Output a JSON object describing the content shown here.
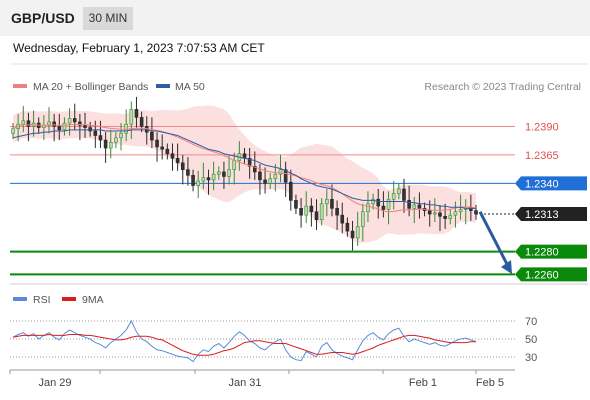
{
  "header": {
    "pair": "GBP/USD",
    "timeframe": "30 MIN"
  },
  "timestamp": "Wednesday, February 1, 2023 7:07:53 AM CET",
  "chart_data": [
    {
      "type": "candlestick",
      "legend": [
        {
          "name": "MA 20 + Bollinger Bands",
          "color": "#f08080"
        },
        {
          "name": "MA 50",
          "color": "#2f5d9e"
        }
      ],
      "attribution": "Research © 2023 Trading Central",
      "ylim": [
        1.2255,
        1.2415
      ],
      "levels": [
        {
          "value": 1.239,
          "label": "1.2390",
          "kind": "resistance",
          "color": "#e05050"
        },
        {
          "value": 1.2365,
          "label": "1.2365",
          "kind": "resistance",
          "color": "#e05050"
        },
        {
          "value": 1.234,
          "label": "1.2340",
          "kind": "pivot",
          "color": "#1f6fd6"
        },
        {
          "value": 1.2313,
          "label": "1.2313",
          "kind": "last",
          "color": "#222222"
        },
        {
          "value": 1.228,
          "label": "1.2280",
          "kind": "support",
          "color": "#0a8a0a"
        },
        {
          "value": 1.226,
          "label": "1.2260",
          "kind": "support",
          "color": "#0a8a0a"
        }
      ],
      "forecast": {
        "from": 1.2315,
        "to": 1.2262,
        "color": "#2a5aa0"
      },
      "x_ticks": [
        "Jan 29",
        "Jan 31",
        "Feb 1",
        "Feb 5"
      ],
      "closes": [
        1.2388,
        1.2392,
        1.2395,
        1.239,
        1.2393,
        1.2389,
        1.2391,
        1.2394,
        1.239,
        1.2387,
        1.2393,
        1.2397,
        1.2394,
        1.2391,
        1.2389,
        1.2386,
        1.2382,
        1.2378,
        1.2371,
        1.2376,
        1.238,
        1.2384,
        1.2392,
        1.2405,
        1.2398,
        1.239,
        1.2385,
        1.2378,
        1.2372,
        1.237,
        1.2366,
        1.2362,
        1.2358,
        1.2352,
        1.2347,
        1.2338,
        1.2342,
        1.2345,
        1.2343,
        1.2348,
        1.235,
        1.2346,
        1.2352,
        1.236,
        1.2366,
        1.2362,
        1.2355,
        1.235,
        1.2343,
        1.234,
        1.2344,
        1.2348,
        1.2352,
        1.2341,
        1.2325,
        1.2318,
        1.2312,
        1.232,
        1.2315,
        1.2308,
        1.2322,
        1.2326,
        1.2318,
        1.2312,
        1.2305,
        1.2298,
        1.2292,
        1.2302,
        1.2315,
        1.2322,
        1.2326,
        1.232,
        1.2317,
        1.2326,
        1.2331,
        1.2335,
        1.2325,
        1.2318,
        1.2321,
        1.2318,
        1.2316,
        1.2313,
        1.2314,
        1.2311,
        1.2309,
        1.2312,
        1.2315,
        1.2317,
        1.2319,
        1.2316,
        1.2313
      ],
      "ma50": [
        1.238,
        1.2381,
        1.2382,
        1.2383,
        1.2384,
        1.2384,
        1.2385,
        1.2385,
        1.2386,
        1.2386,
        1.2386,
        1.2387,
        1.2387,
        1.2387,
        1.2387,
        1.2387,
        1.2387,
        1.2387,
        1.2386,
        1.2386,
        1.2386,
        1.2386,
        1.2386,
        1.2387,
        1.2387,
        1.2387,
        1.2387,
        1.2386,
        1.2386,
        1.2385,
        1.2384,
        1.2383,
        1.2382,
        1.238,
        1.2378,
        1.2376,
        1.2374,
        1.2372,
        1.237,
        1.2369,
        1.2368,
        1.2366,
        1.2365,
        1.2364,
        1.2363,
        1.2362,
        1.2361,
        1.236,
        1.2358,
        1.2356,
        1.2355,
        1.2354,
        1.2353,
        1.2351,
        1.2349,
        1.2347,
        1.2344,
        1.2342,
        1.234,
        1.2338,
        1.2337,
        1.2336,
        1.2335,
        1.2333,
        1.2331,
        1.2329,
        1.2327,
        1.2326,
        1.2325,
        1.2325,
        1.2325,
        1.2324,
        1.2324,
        1.2324,
        1.2324,
        1.2324,
        1.2324,
        1.2323,
        1.2323,
        1.2322,
        1.2322,
        1.2321,
        1.2321,
        1.232,
        1.232,
        1.2319,
        1.2319,
        1.2319,
        1.2318,
        1.2318,
        1.2318
      ]
    },
    {
      "type": "line",
      "legend": [
        {
          "name": "RSI",
          "color": "#5b8bd8"
        },
        {
          "name": "9MA",
          "color": "#d81e1e"
        }
      ],
      "ylim": [
        20,
        80
      ],
      "y_ticks": [
        70,
        50,
        30
      ],
      "rsi": [
        52,
        55,
        57,
        53,
        56,
        50,
        54,
        57,
        52,
        49,
        56,
        60,
        57,
        54,
        52,
        50,
        46,
        44,
        40,
        46,
        50,
        54,
        60,
        70,
        58,
        50,
        47,
        42,
        38,
        37,
        35,
        33,
        31,
        30,
        29,
        25,
        33,
        38,
        36,
        42,
        45,
        40,
        46,
        53,
        58,
        54,
        48,
        45,
        40,
        38,
        43,
        47,
        50,
        38,
        30,
        27,
        26,
        36,
        33,
        30,
        42,
        46,
        38,
        34,
        31,
        29,
        27,
        38,
        48,
        54,
        57,
        52,
        49,
        56,
        60,
        62,
        53,
        47,
        50,
        48,
        46,
        44,
        46,
        43,
        42,
        45,
        48,
        50,
        51,
        49,
        47
      ],
      "ma9": [
        52,
        53,
        54,
        54,
        54,
        54,
        54,
        55,
        54,
        54,
        54,
        55,
        55,
        55,
        54,
        54,
        53,
        52,
        51,
        50,
        49,
        49,
        50,
        52,
        53,
        53,
        53,
        52,
        50,
        49,
        46,
        43,
        40,
        37,
        35,
        33,
        32,
        32,
        32,
        33,
        35,
        37,
        38,
        40,
        43,
        46,
        47,
        48,
        48,
        47,
        46,
        45,
        45,
        45,
        43,
        41,
        39,
        37,
        35,
        33,
        33,
        34,
        35,
        35,
        35,
        34,
        33,
        34,
        36,
        38,
        40,
        43,
        45,
        47,
        49,
        51,
        53,
        54,
        54,
        53,
        52,
        51,
        49,
        48,
        47,
        46,
        46,
        46,
        46,
        47,
        47
      ]
    }
  ]
}
